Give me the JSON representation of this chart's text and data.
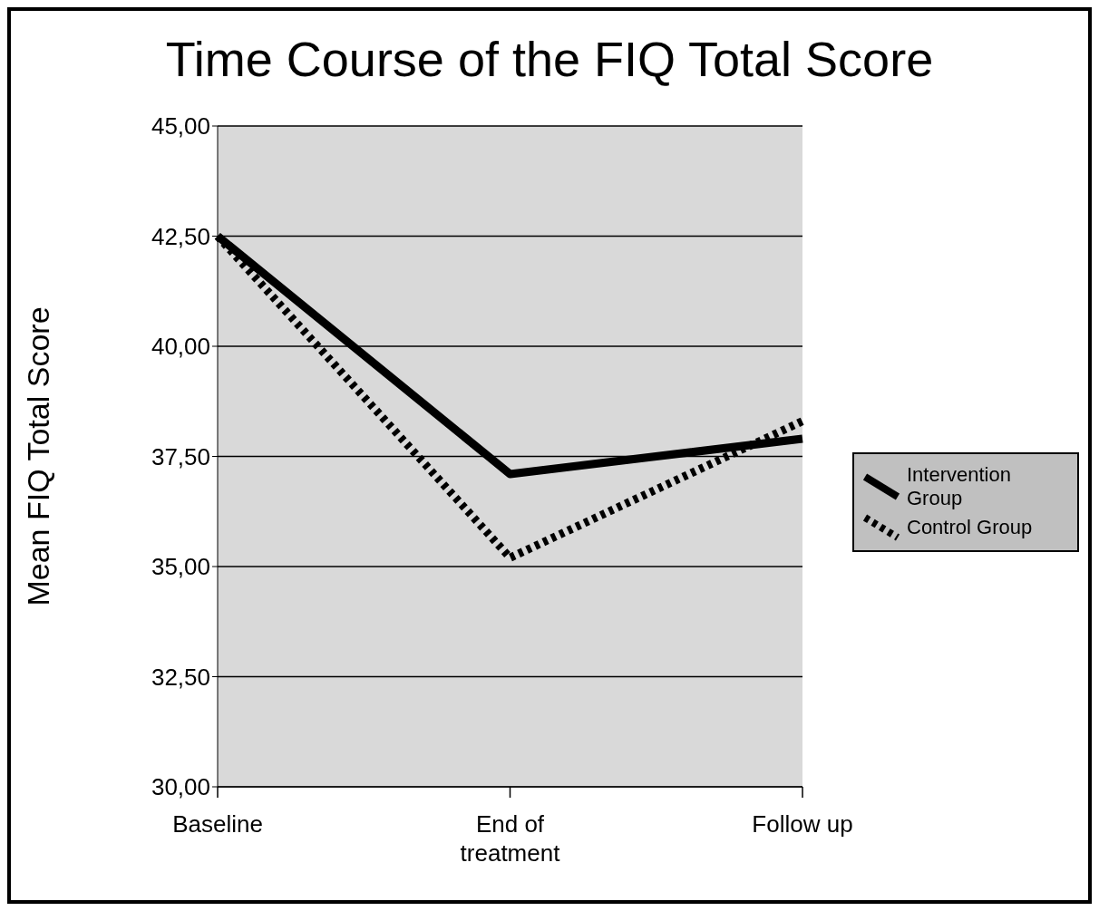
{
  "chart_data": {
    "type": "line",
    "title": "Time Course of the FIQ Total Score",
    "ylabel": "Mean FIQ Total Score",
    "categories": [
      "Baseline",
      "End of treatment",
      "Follow up"
    ],
    "series": [
      {
        "name": "Intervention Group",
        "color": "#000000",
        "line_style": "solid",
        "values": [
          42.5,
          37.1,
          37.9
        ]
      },
      {
        "name": "Control Group",
        "color": "#000000",
        "line_style": "dotted",
        "values": [
          42.5,
          35.2,
          38.3
        ]
      }
    ],
    "ylim": [
      30,
      45
    ],
    "yticks": [
      {
        "value": 30,
        "label": "30,00"
      },
      {
        "value": 32.5,
        "label": "32,50"
      },
      {
        "value": 35,
        "label": "35,00"
      },
      {
        "value": 37.5,
        "label": "37,50"
      },
      {
        "value": 40,
        "label": "40,00"
      },
      {
        "value": 42.5,
        "label": "42,50"
      },
      {
        "value": 45,
        "label": "45,00"
      }
    ],
    "grid": "y",
    "legend": "right",
    "marker": "none"
  }
}
